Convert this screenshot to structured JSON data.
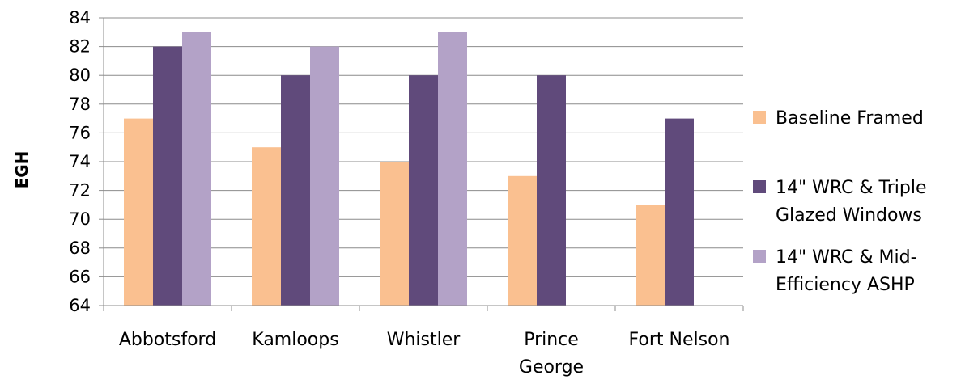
{
  "chart_data": {
    "type": "bar",
    "title": "",
    "xlabel": "",
    "ylabel": "EGH",
    "ylim": [
      64,
      84
    ],
    "ytick_step": 2,
    "grid": true,
    "legend_position": "right",
    "categories": [
      "Abbotsford",
      "Kamloops",
      "Whistler",
      "Prince George",
      "Fort Nelson"
    ],
    "category_label_lines": [
      [
        "Abbotsford"
      ],
      [
        "Kamloops"
      ],
      [
        "Whistler"
      ],
      [
        "Prince",
        "George"
      ],
      [
        "Fort Nelson"
      ]
    ],
    "series": [
      {
        "name": "Baseline Framed",
        "name_lines": [
          "Baseline Framed"
        ],
        "color": "#FAC090",
        "values": [
          77,
          75,
          74,
          73,
          71
        ]
      },
      {
        "name": "14\" WRC & Triple Glazed Windows",
        "name_lines": [
          "14\" WRC & Triple",
          "Glazed Windows"
        ],
        "color": "#604A7B",
        "values": [
          82,
          80,
          80,
          80,
          77
        ]
      },
      {
        "name": "14\" WRC & Mid-Efficiency ASHP",
        "name_lines": [
          "14\" WRC & Mid-",
          "Efficiency ASHP"
        ],
        "color": "#B3A2C7",
        "values": [
          83,
          82,
          83,
          null,
          null
        ]
      }
    ]
  }
}
